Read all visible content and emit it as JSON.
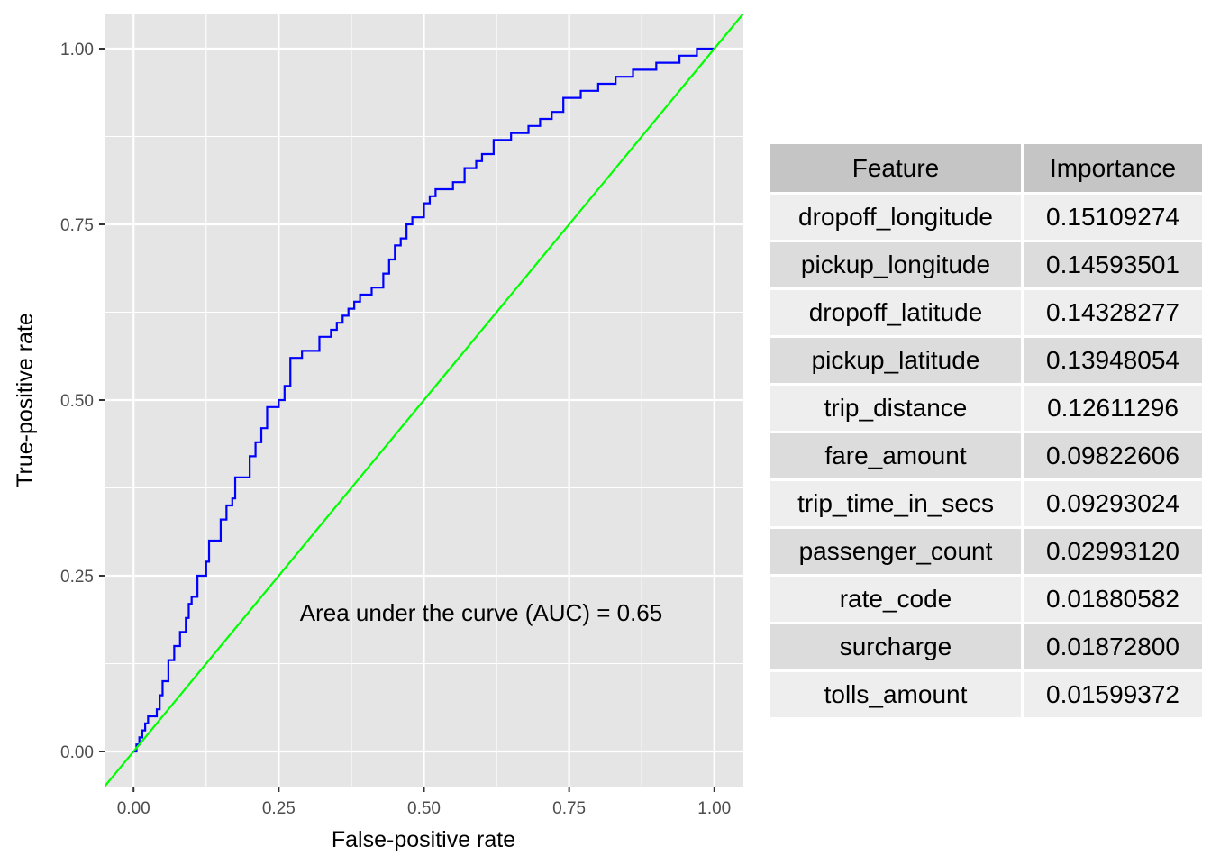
{
  "chart_data": [
    {
      "type": "line",
      "xlabel": "False-positive rate",
      "ylabel": "True-positive rate",
      "xlim": [
        -0.05,
        1.05
      ],
      "ylim": [
        -0.05,
        1.05
      ],
      "x_ticks": [
        "0.00",
        "0.25",
        "0.50",
        "0.75",
        "1.00"
      ],
      "y_ticks": [
        "0.00",
        "0.25",
        "0.50",
        "0.75",
        "1.00"
      ],
      "grid": true,
      "annotation": "Area under the curve (AUC) = 0.65",
      "colors": {
        "roc": "#0000ff",
        "diagonal": "#00ff00",
        "panel": "#e5e5e5",
        "grid": "#ffffff"
      },
      "series": [
        {
          "x": [
            0,
            0.005,
            0.005,
            0.01,
            0.01,
            0.015,
            0.015,
            0.02,
            0.02,
            0.025,
            0.025,
            0.04,
            0.04,
            0.045,
            0.045,
            0.05,
            0.05,
            0.06,
            0.06,
            0.07,
            0.07,
            0.08,
            0.08,
            0.09,
            0.09,
            0.095,
            0.095,
            0.1,
            0.1,
            0.11,
            0.11,
            0.125,
            0.125,
            0.13,
            0.13,
            0.15,
            0.15,
            0.16,
            0.16,
            0.17,
            0.17,
            0.175,
            0.175,
            0.2,
            0.2,
            0.21,
            0.21,
            0.22,
            0.22,
            0.23,
            0.23,
            0.25,
            0.25,
            0.26,
            0.26,
            0.27,
            0.27,
            0.29,
            0.29,
            0.32,
            0.32,
            0.34,
            0.34,
            0.35,
            0.35,
            0.36,
            0.36,
            0.37,
            0.37,
            0.38,
            0.38,
            0.39,
            0.39,
            0.41,
            0.41,
            0.43,
            0.43,
            0.44,
            0.44,
            0.45,
            0.45,
            0.46,
            0.46,
            0.47,
            0.47,
            0.48,
            0.48,
            0.5,
            0.5,
            0.51,
            0.51,
            0.52,
            0.52,
            0.55,
            0.55,
            0.57,
            0.57,
            0.59,
            0.59,
            0.6,
            0.6,
            0.62,
            0.62,
            0.65,
            0.65,
            0.68,
            0.68,
            0.7,
            0.7,
            0.72,
            0.72,
            0.74,
            0.74,
            0.77,
            0.77,
            0.8,
            0.8,
            0.83,
            0.83,
            0.86,
            0.86,
            0.9,
            0.9,
            0.94,
            0.94,
            0.97,
            0.97,
            1.0
          ],
          "y": [
            0,
            0,
            0.01,
            0.01,
            0.02,
            0.02,
            0.03,
            0.03,
            0.04,
            0.04,
            0.05,
            0.05,
            0.06,
            0.06,
            0.08,
            0.08,
            0.1,
            0.1,
            0.13,
            0.13,
            0.15,
            0.15,
            0.17,
            0.17,
            0.19,
            0.19,
            0.21,
            0.21,
            0.22,
            0.22,
            0.25,
            0.25,
            0.27,
            0.27,
            0.3,
            0.3,
            0.33,
            0.33,
            0.35,
            0.35,
            0.36,
            0.36,
            0.39,
            0.39,
            0.42,
            0.42,
            0.44,
            0.44,
            0.46,
            0.46,
            0.49,
            0.49,
            0.5,
            0.5,
            0.52,
            0.52,
            0.56,
            0.56,
            0.57,
            0.57,
            0.59,
            0.59,
            0.6,
            0.6,
            0.61,
            0.61,
            0.62,
            0.62,
            0.63,
            0.63,
            0.64,
            0.64,
            0.65,
            0.65,
            0.66,
            0.66,
            0.68,
            0.68,
            0.7,
            0.7,
            0.72,
            0.72,
            0.73,
            0.73,
            0.75,
            0.75,
            0.76,
            0.76,
            0.78,
            0.78,
            0.79,
            0.79,
            0.8,
            0.8,
            0.81,
            0.81,
            0.83,
            0.83,
            0.84,
            0.84,
            0.85,
            0.85,
            0.87,
            0.87,
            0.88,
            0.88,
            0.89,
            0.89,
            0.9,
            0.9,
            0.91,
            0.91,
            0.93,
            0.93,
            0.94,
            0.94,
            0.95,
            0.95,
            0.96,
            0.96,
            0.97,
            0.97,
            0.98,
            0.98,
            0.99,
            0.99,
            1.0,
            1.0
          ]
        },
        {
          "x": [
            -0.05,
            1.05
          ],
          "y": [
            -0.05,
            1.05
          ]
        }
      ]
    },
    {
      "type": "table",
      "columns": [
        "Feature",
        "Importance"
      ],
      "rows": [
        [
          "dropoff_longitude",
          "0.15109274"
        ],
        [
          "pickup_longitude",
          "0.14593501"
        ],
        [
          "dropoff_latitude",
          "0.14328277"
        ],
        [
          "pickup_latitude",
          "0.13948054"
        ],
        [
          "trip_distance",
          "0.12611296"
        ],
        [
          "fare_amount",
          "0.09822606"
        ],
        [
          "trip_time_in_secs",
          "0.09293024"
        ],
        [
          "passenger_count",
          "0.02993120"
        ],
        [
          "rate_code",
          "0.01880582"
        ],
        [
          "surcharge",
          "0.01872800"
        ],
        [
          "tolls_amount",
          "0.01599372"
        ]
      ]
    }
  ]
}
